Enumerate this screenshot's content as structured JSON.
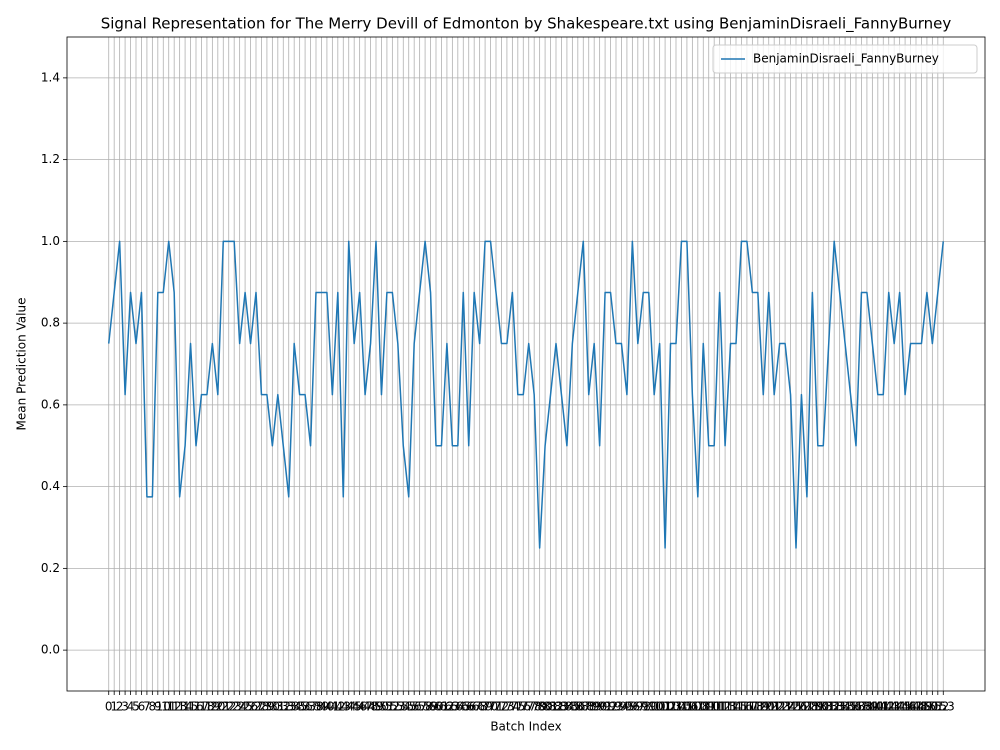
{
  "chart_data": {
    "type": "line",
    "title": "Signal Representation for The Merry Devill of Edmonton by Shakespeare.txt using BenjaminDisraeli_FannyBurney",
    "x_label": "Batch Index",
    "y_label": "Mean Prediction Value",
    "x": [
      0,
      1,
      2,
      3,
      4,
      5,
      6,
      7,
      8,
      9,
      10,
      11,
      12,
      13,
      14,
      15,
      16,
      17,
      18,
      19,
      20,
      21,
      22,
      23,
      24,
      25,
      26,
      27,
      28,
      29,
      30,
      31,
      32,
      33,
      34,
      35,
      36,
      37,
      38,
      39,
      40,
      41,
      42,
      43,
      44,
      45,
      46,
      47,
      48,
      49,
      50,
      51,
      52,
      53,
      54,
      55,
      56,
      57,
      58,
      59,
      60,
      61,
      62,
      63,
      64,
      65,
      66,
      67,
      68,
      69,
      70,
      71,
      72,
      73,
      74,
      75,
      76,
      77,
      78,
      79,
      80,
      81,
      82,
      83,
      84,
      85,
      86,
      87,
      88,
      89,
      90,
      91,
      92,
      93,
      94,
      95,
      96,
      97,
      98,
      99,
      100,
      101,
      102,
      103,
      104,
      105,
      106,
      107,
      108,
      109,
      110,
      111,
      112,
      113,
      114,
      115,
      116,
      117,
      118,
      119,
      120,
      121,
      122,
      123,
      124,
      125,
      126,
      127,
      128,
      129,
      130,
      131,
      132,
      133,
      134,
      135,
      136,
      137,
      138,
      139,
      140,
      141,
      142,
      143,
      144,
      145,
      146,
      147,
      148,
      149,
      150,
      151,
      152,
      153
    ],
    "series": [
      {
        "name": "BenjaminDisraeli_FannyBurney",
        "color": "#1f77b4",
        "values": [
          0.75,
          0.875,
          1.0,
          0.625,
          0.875,
          0.75,
          0.875,
          0.375,
          0.375,
          0.875,
          0.875,
          1.0,
          0.875,
          0.375,
          0.5,
          0.75,
          0.5,
          0.625,
          0.625,
          0.75,
          0.625,
          1.0,
          1.0,
          1.0,
          0.75,
          0.875,
          0.75,
          0.875,
          0.625,
          0.625,
          0.5,
          0.625,
          0.5,
          0.375,
          0.75,
          0.625,
          0.625,
          0.5,
          0.875,
          0.875,
          0.875,
          0.625,
          0.875,
          0.375,
          1.0,
          0.75,
          0.875,
          0.625,
          0.75,
          1.0,
          0.625,
          0.875,
          0.875,
          0.75,
          0.5,
          0.375,
          0.75,
          0.875,
          1.0,
          0.875,
          0.5,
          0.5,
          0.75,
          0.5,
          0.5,
          0.875,
          0.5,
          0.875,
          0.75,
          1.0,
          1.0,
          0.875,
          0.75,
          0.75,
          0.875,
          0.625,
          0.625,
          0.75,
          0.625,
          0.25,
          0.5,
          0.625,
          0.75,
          0.625,
          0.5,
          0.75,
          0.875,
          1.0,
          0.625,
          0.75,
          0.5,
          0.875,
          0.875,
          0.75,
          0.75,
          0.625,
          1.0,
          0.75,
          0.875,
          0.875,
          0.625,
          0.75,
          0.25,
          0.75,
          0.75,
          1.0,
          1.0,
          0.625,
          0.375,
          0.75,
          0.5,
          0.5,
          0.875,
          0.5,
          0.75,
          0.75,
          1.0,
          1.0,
          0.875,
          0.875,
          0.625,
          0.875,
          0.625,
          0.75,
          0.75,
          0.625,
          0.25,
          0.625,
          0.375,
          0.875,
          0.5,
          0.5,
          0.75,
          1.0,
          0.875,
          0.75,
          0.625,
          0.5,
          0.875,
          0.875,
          0.75,
          0.625,
          0.625,
          0.875,
          0.75,
          0.875,
          0.625,
          0.75,
          0.75,
          0.75,
          0.875,
          0.75,
          0.875,
          1.0
        ]
      }
    ],
    "xlim": [
      -7.65,
      160.65
    ],
    "xticks": [
      0,
      1,
      2,
      3,
      4,
      5,
      6,
      7,
      8,
      9,
      10,
      11,
      12,
      13,
      14,
      15,
      16,
      17,
      18,
      19,
      20,
      21,
      22,
      23,
      24,
      25,
      26,
      27,
      28,
      29,
      30,
      31,
      32,
      33,
      34,
      35,
      36,
      37,
      38,
      39,
      40,
      41,
      42,
      43,
      44,
      45,
      46,
      47,
      48,
      49,
      50,
      51,
      52,
      53,
      54,
      55,
      56,
      57,
      58,
      59,
      60,
      61,
      62,
      63,
      64,
      65,
      66,
      67,
      68,
      69,
      70,
      71,
      72,
      73,
      74,
      75,
      76,
      77,
      78,
      79,
      80,
      81,
      82,
      83,
      84,
      85,
      86,
      87,
      88,
      89,
      90,
      91,
      92,
      93,
      94,
      95,
      96,
      97,
      98,
      99,
      100,
      101,
      102,
      103,
      104,
      105,
      106,
      107,
      108,
      109,
      110,
      111,
      112,
      113,
      114,
      115,
      116,
      117,
      118,
      119,
      120,
      121,
      122,
      123,
      124,
      125,
      126,
      127,
      128,
      129,
      130,
      131,
      132,
      133,
      134,
      135,
      136,
      137,
      138,
      139,
      140,
      141,
      142,
      143,
      144,
      145,
      146,
      147,
      148,
      149,
      150,
      151,
      152,
      153
    ],
    "ylim": [
      -0.1,
      1.5
    ],
    "yticks": [
      {
        "value": 0,
        "label": "0.0"
      },
      0.2,
      0.4,
      0.6,
      0.8,
      {
        "value": 1,
        "label": "1.0"
      },
      1.2,
      1.4
    ],
    "grid": true,
    "legend": "upper right"
  }
}
